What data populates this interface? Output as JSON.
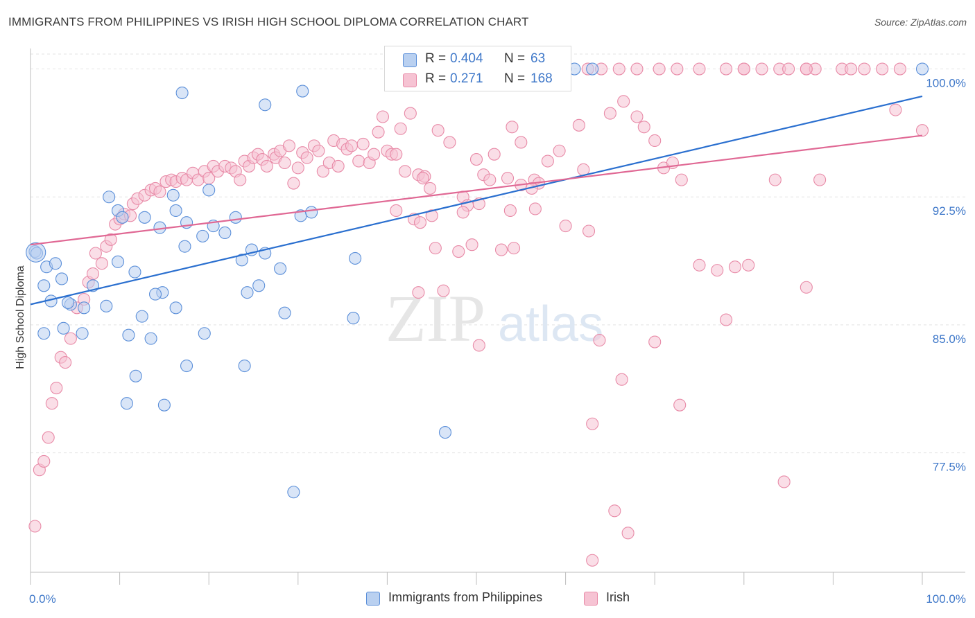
{
  "header": {
    "title": "IMMIGRANTS FROM PHILIPPINES VS IRISH HIGH SCHOOL DIPLOMA CORRELATION CHART",
    "source": "Source: ZipAtlas.com"
  },
  "watermark": {
    "zip": "ZIP",
    "atlas": "atlas"
  },
  "colors": {
    "blue": "#5b8fd9",
    "blue_fill": "#b9d0f0",
    "blue_line": "#2a6fcf",
    "pink": "#e88aa7",
    "pink_fill": "#f6c3d3",
    "pink_line": "#e06894",
    "tick_label": "#3f78c9"
  },
  "legend": {
    "rows": [
      {
        "r_label": "R =",
        "r_value": "0.404",
        "n_label": "N =",
        "n_value": "63"
      },
      {
        "r_label": "R =",
        "r_value": "0.271",
        "n_label": "N =",
        "n_value": "168"
      }
    ],
    "bottom": [
      {
        "label": "Immigrants from Philippines"
      },
      {
        "label": "Irish"
      }
    ]
  },
  "chart_data": {
    "type": "scatter",
    "title": "IMMIGRANTS FROM PHILIPPINES VS IRISH HIGH SCHOOL DIPLOMA CORRELATION CHART",
    "xlabel": "",
    "ylabel": "High School Diploma",
    "xlim": [
      0,
      100
    ],
    "ylim": [
      70.5,
      101.2
    ],
    "x_tick_labels": [
      "0.0%",
      "100.0%"
    ],
    "y_ticks": [
      77.5,
      85.0,
      92.5,
      100.0
    ],
    "y_tick_labels": [
      "77.5%",
      "85.0%",
      "92.5%",
      "100.0%"
    ],
    "grid": true,
    "legend_position": "top-center",
    "series": [
      {
        "name": "Immigrants from Philippines",
        "trend": {
          "x": [
            0,
            100
          ],
          "y": [
            86.2,
            98.4
          ]
        },
        "points": [
          [
            0.5,
            89.3
          ],
          [
            0.7,
            89.2
          ],
          [
            1.8,
            88.4
          ],
          [
            2.8,
            88.6
          ],
          [
            1.5,
            87.3
          ],
          [
            3.5,
            87.7
          ],
          [
            7.0,
            87.3
          ],
          [
            2.3,
            86.4
          ],
          [
            4.5,
            86.2
          ],
          [
            6.0,
            86.0
          ],
          [
            8.5,
            86.1
          ],
          [
            1.5,
            84.5
          ],
          [
            3.7,
            84.8
          ],
          [
            5.8,
            84.5
          ],
          [
            8.8,
            92.5
          ],
          [
            9.8,
            91.7
          ],
          [
            10.3,
            91.3
          ],
          [
            12.8,
            91.3
          ],
          [
            14.5,
            90.7
          ],
          [
            16.3,
            91.7
          ],
          [
            17.5,
            91.0
          ],
          [
            20.5,
            90.8
          ],
          [
            21.8,
            90.4
          ],
          [
            23.0,
            91.3
          ],
          [
            17.3,
            89.6
          ],
          [
            19.3,
            90.2
          ],
          [
            20.0,
            92.9
          ],
          [
            16.0,
            92.6
          ],
          [
            11.7,
            88.1
          ],
          [
            14.8,
            86.9
          ],
          [
            16.3,
            86.0
          ],
          [
            12.5,
            85.5
          ],
          [
            11.0,
            84.4
          ],
          [
            13.5,
            84.2
          ],
          [
            19.5,
            84.5
          ],
          [
            23.7,
            88.8
          ],
          [
            24.8,
            89.4
          ],
          [
            25.6,
            87.3
          ],
          [
            26.3,
            89.2
          ],
          [
            24.3,
            86.9
          ],
          [
            28.0,
            88.3
          ],
          [
            28.5,
            85.7
          ],
          [
            36.4,
            88.9
          ],
          [
            30.3,
            91.4
          ],
          [
            31.5,
            91.6
          ],
          [
            36.2,
            85.4
          ],
          [
            14.0,
            86.8
          ],
          [
            9.8,
            88.7
          ],
          [
            4.2,
            86.3
          ],
          [
            11.8,
            82.0
          ],
          [
            17.5,
            82.6
          ],
          [
            24.0,
            82.6
          ],
          [
            10.8,
            80.4
          ],
          [
            15.0,
            80.3
          ],
          [
            29.5,
            75.2
          ],
          [
            46.5,
            78.7
          ],
          [
            17.0,
            98.6
          ],
          [
            26.3,
            97.9
          ],
          [
            30.5,
            98.7
          ],
          [
            60.0,
            100.0
          ],
          [
            61.0,
            100.0
          ],
          [
            63.0,
            100.0
          ],
          [
            100.0,
            100.0
          ]
        ]
      },
      {
        "name": "Irish",
        "trend": {
          "x": [
            0,
            100
          ],
          "y": [
            89.7,
            96.1
          ]
        },
        "points": [
          [
            0.5,
            73.2
          ],
          [
            1.0,
            76.5
          ],
          [
            1.5,
            77.0
          ],
          [
            2.0,
            78.4
          ],
          [
            2.4,
            80.4
          ],
          [
            2.9,
            81.3
          ],
          [
            3.4,
            83.1
          ],
          [
            3.9,
            82.8
          ],
          [
            4.5,
            84.2
          ],
          [
            5.2,
            86.0
          ],
          [
            6.0,
            86.5
          ],
          [
            6.5,
            87.5
          ],
          [
            7.0,
            88.0
          ],
          [
            7.3,
            89.2
          ],
          [
            8.0,
            88.6
          ],
          [
            8.5,
            89.6
          ],
          [
            9.0,
            90.0
          ],
          [
            9.5,
            90.9
          ],
          [
            10.0,
            91.2
          ],
          [
            10.5,
            91.5
          ],
          [
            11.2,
            91.4
          ],
          [
            11.5,
            92.1
          ],
          [
            12.0,
            92.4
          ],
          [
            12.8,
            92.6
          ],
          [
            13.5,
            92.9
          ],
          [
            14.0,
            93.0
          ],
          [
            14.5,
            92.8
          ],
          [
            15.2,
            93.4
          ],
          [
            15.8,
            93.5
          ],
          [
            16.3,
            93.4
          ],
          [
            17.0,
            93.6
          ],
          [
            17.5,
            93.5
          ],
          [
            18.2,
            93.9
          ],
          [
            18.8,
            93.5
          ],
          [
            19.5,
            94.0
          ],
          [
            20.0,
            93.6
          ],
          [
            20.5,
            94.3
          ],
          [
            21.0,
            94.0
          ],
          [
            21.8,
            94.3
          ],
          [
            22.5,
            94.2
          ],
          [
            23.0,
            94.0
          ],
          [
            23.5,
            93.5
          ],
          [
            24.0,
            94.6
          ],
          [
            24.5,
            94.3
          ],
          [
            25.0,
            94.8
          ],
          [
            25.5,
            95.0
          ],
          [
            26.0,
            94.7
          ],
          [
            26.5,
            94.3
          ],
          [
            27.3,
            95.0
          ],
          [
            27.5,
            94.8
          ],
          [
            28.0,
            95.2
          ],
          [
            28.5,
            94.5
          ],
          [
            29.0,
            95.5
          ],
          [
            29.5,
            93.3
          ],
          [
            30.0,
            94.2
          ],
          [
            30.5,
            95.1
          ],
          [
            31.0,
            94.8
          ],
          [
            31.8,
            95.5
          ],
          [
            32.3,
            95.2
          ],
          [
            32.8,
            94.0
          ],
          [
            33.5,
            94.5
          ],
          [
            34.0,
            95.8
          ],
          [
            34.5,
            94.3
          ],
          [
            35.0,
            95.6
          ],
          [
            35.5,
            95.3
          ],
          [
            36.0,
            95.5
          ],
          [
            36.8,
            94.6
          ],
          [
            37.3,
            95.6
          ],
          [
            38.0,
            94.5
          ],
          [
            38.5,
            95.0
          ],
          [
            39.0,
            96.3
          ],
          [
            39.5,
            97.2
          ],
          [
            40.0,
            95.2
          ],
          [
            40.5,
            95.0
          ],
          [
            41.0,
            95.0
          ],
          [
            41.5,
            96.5
          ],
          [
            42.0,
            94.0
          ],
          [
            42.6,
            97.4
          ],
          [
            43.5,
            93.8
          ],
          [
            44.2,
            93.7
          ],
          [
            44.8,
            93.0
          ],
          [
            45.4,
            89.5
          ],
          [
            47.0,
            95.7
          ],
          [
            48.0,
            89.3
          ],
          [
            48.5,
            92.5
          ],
          [
            49.0,
            92.0
          ],
          [
            50.0,
            94.7
          ],
          [
            50.8,
            93.8
          ],
          [
            51.5,
            93.5
          ],
          [
            52.0,
            95.0
          ],
          [
            53.5,
            93.6
          ],
          [
            54.0,
            96.6
          ],
          [
            55.0,
            95.7
          ],
          [
            56.5,
            93.5
          ],
          [
            57.0,
            93.3
          ],
          [
            58.0,
            94.6
          ],
          [
            59.3,
            95.2
          ],
          [
            60.0,
            90.8
          ],
          [
            61.5,
            96.7
          ],
          [
            62.0,
            94.1
          ],
          [
            62.6,
            90.5
          ],
          [
            65.0,
            97.4
          ],
          [
            66.5,
            98.1
          ],
          [
            68.0,
            97.2
          ],
          [
            68.8,
            96.6
          ],
          [
            70.0,
            95.8
          ],
          [
            71.0,
            94.2
          ],
          [
            72.0,
            94.5
          ],
          [
            73.0,
            93.5
          ],
          [
            75.0,
            88.5
          ],
          [
            77.0,
            88.2
          ],
          [
            79.0,
            88.4
          ],
          [
            80.5,
            88.5
          ],
          [
            80.0,
            100.0
          ],
          [
            75.0,
            100.0
          ],
          [
            78.0,
            100.0
          ],
          [
            82.0,
            100.0
          ],
          [
            84.0,
            100.0
          ],
          [
            85.0,
            100.0
          ],
          [
            87.0,
            100.0
          ],
          [
            88.0,
            100.0
          ],
          [
            91.0,
            100.0
          ],
          [
            92.0,
            100.0
          ],
          [
            97.5,
            100.0
          ],
          [
            100.0,
            96.4
          ],
          [
            97.0,
            97.6
          ],
          [
            93.5,
            100.0
          ],
          [
            95.5,
            100.0
          ],
          [
            62.5,
            100.0
          ],
          [
            64.0,
            100.0
          ],
          [
            66.0,
            100.0
          ],
          [
            68.0,
            100.0
          ],
          [
            70.5,
            100.0
          ],
          [
            72.5,
            100.0
          ],
          [
            87.0,
            87.2
          ],
          [
            83.5,
            93.5
          ],
          [
            78.0,
            85.3
          ],
          [
            80.0,
            100.0
          ],
          [
            63.0,
            79.2
          ],
          [
            66.3,
            81.8
          ],
          [
            70.0,
            84.0
          ],
          [
            72.8,
            80.3
          ],
          [
            63.8,
            84.1
          ],
          [
            65.5,
            74.1
          ],
          [
            67.0,
            72.8
          ],
          [
            63.0,
            71.2
          ],
          [
            84.5,
            75.8
          ],
          [
            88.5,
            93.5
          ],
          [
            87.0,
            100.0
          ],
          [
            56.6,
            91.8
          ],
          [
            55.0,
            93.2
          ],
          [
            50.3,
            92.1
          ],
          [
            48.5,
            91.6
          ],
          [
            45.7,
            96.4
          ],
          [
            44.0,
            93.6
          ],
          [
            41.0,
            91.7
          ],
          [
            43.0,
            91.2
          ],
          [
            43.7,
            91.0
          ],
          [
            45.0,
            91.4
          ],
          [
            49.5,
            89.7
          ],
          [
            50.3,
            83.8
          ],
          [
            46.3,
            87.0
          ],
          [
            43.5,
            86.9
          ],
          [
            54.2,
            89.5
          ],
          [
            52.8,
            89.4
          ],
          [
            53.8,
            91.7
          ],
          [
            56.2,
            93.0
          ]
        ]
      }
    ]
  }
}
